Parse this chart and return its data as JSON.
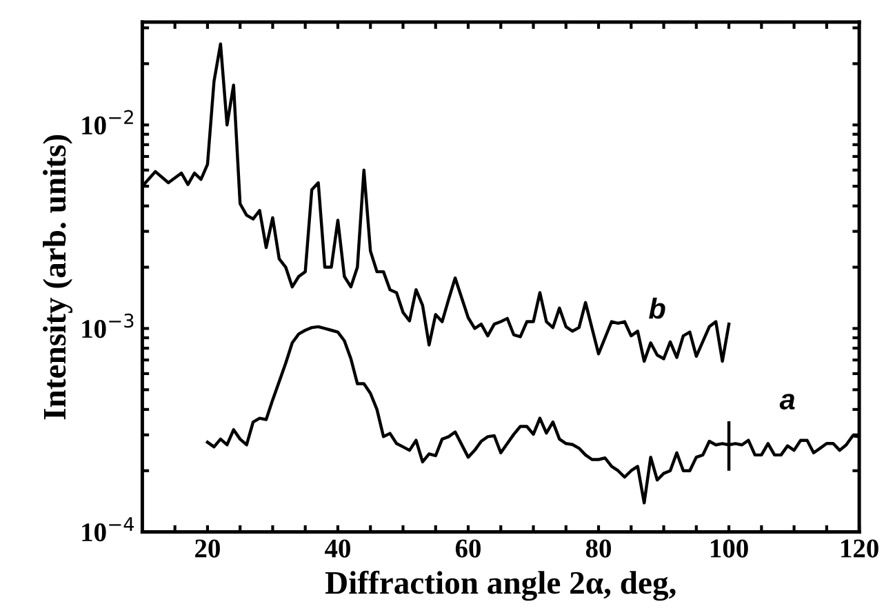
{
  "chart_data": {
    "type": "line",
    "xlabel": "Diffraction angle 2α, deg,",
    "ylabel": "Intensity (arb. units)",
    "log": "y",
    "xlim": [
      10,
      120
    ],
    "ylim": [
      0.0001,
      0.032
    ],
    "xticks": [
      {
        "value": 15,
        "label": null
      },
      20,
      {
        "value": 25,
        "label": null
      },
      {
        "value": 30,
        "label": null
      },
      {
        "value": 35,
        "label": null
      },
      40,
      {
        "value": 45,
        "label": null
      },
      {
        "value": 50,
        "label": null
      },
      {
        "value": 55,
        "label": null
      },
      60,
      {
        "value": 65,
        "label": null
      },
      {
        "value": 70,
        "label": null
      },
      {
        "value": 75,
        "label": null
      },
      80,
      {
        "value": 85,
        "label": null
      },
      {
        "value": 90,
        "label": null
      },
      {
        "value": 95,
        "label": null
      },
      100,
      {
        "value": 105,
        "label": null
      },
      {
        "value": 110,
        "label": null
      },
      {
        "value": 115,
        "label": null
      },
      120
    ],
    "yticks": [
      {
        "value": 0.0001,
        "label": "10$^{−4}$"
      },
      {
        "value": 0.0002,
        "label": null
      },
      {
        "value": 0.0003,
        "label": null
      },
      {
        "value": 0.0004,
        "label": null
      },
      {
        "value": 0.0005,
        "label": null
      },
      {
        "value": 0.0006,
        "label": null
      },
      {
        "value": 0.0007,
        "label": null
      },
      {
        "value": 0.0008,
        "label": null
      },
      {
        "value": 0.0009,
        "label": null
      },
      {
        "value": 0.001,
        "label": "10$^{−3}$"
      },
      {
        "value": 0.002,
        "label": null
      },
      {
        "value": 0.003,
        "label": null
      },
      {
        "value": 0.004,
        "label": null
      },
      {
        "value": 0.005,
        "label": null
      },
      {
        "value": 0.006,
        "label": null
      },
      {
        "value": 0.007,
        "label": null
      },
      {
        "value": 0.008,
        "label": null
      },
      {
        "value": 0.009,
        "label": null
      },
      {
        "value": 0.01,
        "label": "10$^{−2}$"
      },
      {
        "value": 0.02,
        "label": null
      },
      {
        "value": 0.03,
        "label": null
      }
    ],
    "grid": false,
    "marker": "none",
    "line_style": "solid",
    "series": [
      {
        "name": "b",
        "color": "#000000",
        "x": [
          10,
          12,
          14,
          16,
          17,
          18,
          19,
          20,
          21,
          22,
          23,
          24,
          25,
          26,
          27,
          28,
          29,
          30,
          31,
          32,
          33,
          34,
          35,
          36,
          37,
          38,
          39,
          40,
          41,
          42,
          43,
          44,
          45,
          46,
          47,
          48,
          49,
          50,
          51,
          52,
          53,
          54,
          55,
          56,
          57,
          58,
          60,
          61,
          62,
          63,
          64,
          65,
          66,
          67,
          68,
          69,
          70,
          71,
          72,
          73,
          74,
          75,
          76,
          77,
          78,
          80,
          82,
          83,
          84,
          85,
          86,
          87,
          88,
          89,
          90,
          91,
          92,
          93,
          94,
          95,
          97,
          98,
          99,
          100
        ],
        "values": [
          0.005,
          0.0059,
          0.0052,
          0.0058,
          0.0051,
          0.0058,
          0.0054,
          0.0064,
          0.0164,
          0.025,
          0.01,
          0.0157,
          0.0041,
          0.0036,
          0.00345,
          0.0038,
          0.0025,
          0.0035,
          0.0022,
          0.002,
          0.0016,
          0.0018,
          0.0019,
          0.0048,
          0.0052,
          0.002,
          0.002,
          0.0034,
          0.0018,
          0.0016,
          0.002,
          0.006,
          0.0024,
          0.0019,
          0.0019,
          0.00155,
          0.0015,
          0.0012,
          0.00109,
          0.00155,
          0.0013,
          0.00083,
          0.00117,
          0.00108,
          0.00139,
          0.00177,
          0.00113,
          0.001,
          0.00105,
          0.00092,
          0.00105,
          0.00108,
          0.00112,
          0.00093,
          0.00091,
          0.00108,
          0.00108,
          0.0015,
          0.00108,
          0.00101,
          0.00126,
          0.00102,
          0.00097,
          0.00101,
          0.00134,
          0.00075,
          0.00108,
          0.00106,
          0.00108,
          0.00092,
          0.00097,
          0.00069,
          0.00085,
          0.00074,
          0.00071,
          0.00086,
          0.00072,
          0.00092,
          0.00096,
          0.00073,
          0.00102,
          0.00108,
          0.00069,
          0.00105
        ]
      },
      {
        "name": "a",
        "color": "#000000",
        "x": [
          20,
          21,
          22,
          23,
          24,
          25,
          26,
          27,
          28,
          29,
          30,
          31,
          32,
          33,
          34,
          35,
          36,
          37,
          38,
          39,
          40,
          41,
          42,
          43,
          44,
          45,
          46,
          47,
          48,
          49,
          50,
          51,
          52,
          53,
          54,
          55,
          56,
          57,
          58,
          60,
          61,
          62,
          63,
          64,
          65,
          66,
          67,
          68,
          69,
          70,
          71,
          72,
          73,
          74,
          75,
          76,
          77,
          78,
          79,
          80,
          81,
          82,
          83,
          84,
          85,
          86,
          87,
          88,
          89,
          90,
          91,
          92,
          93,
          94,
          95,
          96,
          97,
          98,
          99,
          100,
          101,
          102,
          103,
          104,
          105,
          106,
          107,
          108,
          109,
          110,
          111,
          112,
          113,
          114,
          115,
          116,
          117,
          118,
          119,
          120
        ],
        "values": [
          0.000276,
          0.000262,
          0.000286,
          0.000268,
          0.000318,
          0.000286,
          0.000268,
          0.000347,
          0.000362,
          0.000357,
          0.000446,
          0.000548,
          0.000675,
          0.00085,
          0.00094,
          0.00098,
          0.00101,
          0.00102,
          0.001,
          0.00098,
          0.00096,
          0.00087,
          0.00071,
          0.000535,
          0.000535,
          0.00048,
          0.0004,
          0.000294,
          0.000305,
          0.000272,
          0.000262,
          0.000252,
          0.000282,
          0.000221,
          0.000242,
          0.000237,
          0.000286,
          0.000294,
          0.00031,
          0.000233,
          0.000252,
          0.000279,
          0.000294,
          0.000297,
          0.000245,
          0.000272,
          0.000302,
          0.00033,
          0.00033,
          0.000302,
          0.000362,
          0.000306,
          0.000347,
          0.000286,
          0.000272,
          0.000269,
          0.000258,
          0.000239,
          0.000227,
          0.000227,
          0.000231,
          0.00021,
          0.0002,
          0.000186,
          0.0002,
          0.00021,
          0.000139,
          0.000233,
          0.00018,
          0.000194,
          0.0002,
          0.000245,
          0.0002,
          0.0002,
          0.000233,
          0.000239,
          0.000279,
          0.000268,
          0.000272,
          0.000268,
          0.000272,
          0.000268,
          0.000282,
          0.000239,
          0.000239,
          0.000272,
          0.000239,
          0.000239,
          0.000265,
          0.000252,
          0.000282,
          0.000282,
          0.000245,
          0.000258,
          0.000272,
          0.000272,
          0.000252,
          0.000268,
          0.000297,
          0.000294
        ],
        "errors": [
          null,
          null,
          null,
          null,
          null,
          null,
          null,
          null,
          null,
          null,
          null,
          null,
          null,
          null,
          null,
          null,
          null,
          null,
          null,
          null,
          null,
          null,
          null,
          null,
          null,
          null,
          null,
          null,
          null,
          null,
          null,
          null,
          null,
          null,
          null,
          null,
          null,
          null,
          null,
          null,
          null,
          null,
          null,
          null,
          null,
          null,
          null,
          null,
          null,
          null,
          null,
          null,
          null,
          null,
          null,
          null,
          null,
          null,
          null,
          null,
          null,
          null,
          null,
          null,
          null,
          null,
          null,
          null,
          null,
          null,
          null,
          null,
          null,
          null,
          null,
          null,
          null,
          null,
          null,
          [
            0.0002,
            0.00035
          ],
          null,
          null,
          null,
          null,
          null,
          null,
          null,
          null,
          null,
          null,
          null,
          null,
          null,
          null,
          null,
          null,
          null,
          null,
          null,
          null
        ]
      }
    ]
  }
}
